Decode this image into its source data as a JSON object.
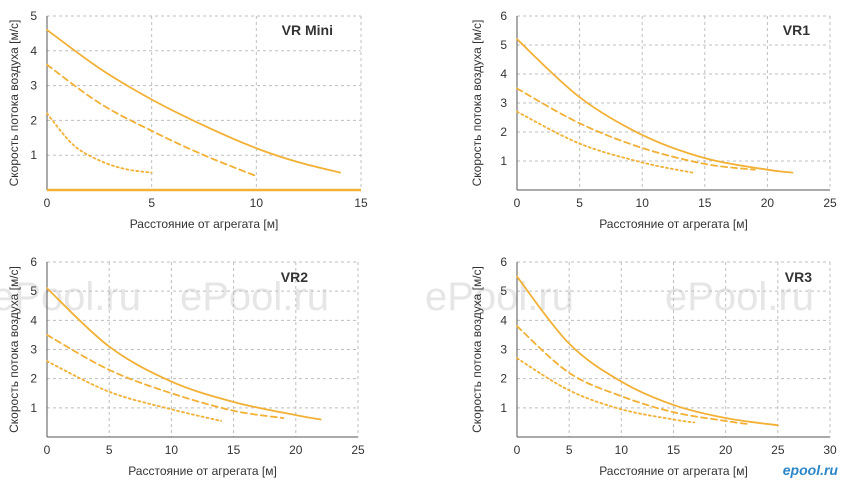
{
  "colors": {
    "curve": "#F2B035",
    "grid": "#bfbfbf",
    "axis": "#555555",
    "watermark": "#e6e6e6"
  },
  "watermarks": [
    "ePool.ru",
    "ePool.ru",
    "ePool.ru",
    "ePool.ru"
  ],
  "logo": "epool.ru",
  "chart_data": [
    {
      "type": "line",
      "title": "VR Mini",
      "xlabel": "Расстояние от агрегата [м]",
      "ylabel": "Скорость потока воздуха [м/с]",
      "xlim": [
        0,
        15
      ],
      "ylim": [
        0,
        5
      ],
      "xticks": [
        0,
        5,
        10,
        15
      ],
      "yticks": [
        1,
        2,
        3,
        4,
        5
      ],
      "grid": true,
      "series": [
        {
          "style": "solid",
          "x": [
            0,
            2.5,
            5,
            7.5,
            10,
            12,
            14
          ],
          "y": [
            4.6,
            3.5,
            2.6,
            1.85,
            1.2,
            0.8,
            0.5
          ]
        },
        {
          "style": "dashed",
          "x": [
            0,
            2.5,
            5,
            7.5,
            10
          ],
          "y": [
            3.6,
            2.5,
            1.7,
            1.0,
            0.4
          ]
        },
        {
          "style": "dotted",
          "x": [
            0,
            1.25,
            2.5,
            3.75,
            5
          ],
          "y": [
            2.2,
            1.3,
            0.85,
            0.6,
            0.5
          ]
        }
      ]
    },
    {
      "type": "line",
      "title": "VR1",
      "xlabel": "Расстояние от агрегата [м]",
      "ylabel": "Скорость потока воздуха [м/с]",
      "xlim": [
        0,
        25
      ],
      "ylim": [
        0,
        6
      ],
      "xticks": [
        0,
        5,
        10,
        15,
        20,
        25
      ],
      "yticks": [
        1,
        2,
        3,
        4,
        5,
        6
      ],
      "grid": true,
      "series": [
        {
          "style": "solid",
          "x": [
            0,
            5,
            10,
            15,
            20,
            22
          ],
          "y": [
            5.2,
            3.2,
            1.9,
            1.1,
            0.7,
            0.6
          ]
        },
        {
          "style": "dashed",
          "x": [
            0,
            5,
            10,
            15,
            19
          ],
          "y": [
            3.5,
            2.3,
            1.45,
            0.9,
            0.7
          ]
        },
        {
          "style": "dotted",
          "x": [
            0,
            5,
            10,
            14
          ],
          "y": [
            2.7,
            1.6,
            0.95,
            0.6
          ]
        }
      ]
    },
    {
      "type": "line",
      "title": "VR2",
      "xlabel": "Расстояние от агрегата [м]",
      "ylabel": "Скорость потока воздуха [м/с]",
      "xlim": [
        0,
        25
      ],
      "ylim": [
        0,
        6
      ],
      "xticks": [
        0,
        5,
        10,
        15,
        20,
        25
      ],
      "yticks": [
        1,
        2,
        3,
        4,
        5,
        6
      ],
      "grid": true,
      "series": [
        {
          "style": "solid",
          "x": [
            0,
            5,
            10,
            15,
            20,
            22
          ],
          "y": [
            5.1,
            3.1,
            1.9,
            1.2,
            0.75,
            0.6
          ]
        },
        {
          "style": "dashed",
          "x": [
            0,
            5,
            10,
            15,
            19
          ],
          "y": [
            3.5,
            2.3,
            1.5,
            0.9,
            0.65
          ]
        },
        {
          "style": "dotted",
          "x": [
            0,
            5,
            10,
            14
          ],
          "y": [
            2.6,
            1.55,
            0.95,
            0.55
          ]
        }
      ]
    },
    {
      "type": "line",
      "title": "VR3",
      "xlabel": "Расстояние от агрегата [м]",
      "ylabel": "Скорость потока воздуха [м/с]",
      "xlim": [
        0,
        30
      ],
      "ylim": [
        0,
        6
      ],
      "xticks": [
        0,
        5,
        10,
        15,
        20,
        25,
        30
      ],
      "yticks": [
        1,
        2,
        3,
        4,
        5,
        6
      ],
      "grid": true,
      "series": [
        {
          "style": "solid",
          "x": [
            0,
            5,
            10,
            15,
            20,
            25
          ],
          "y": [
            5.5,
            3.2,
            1.9,
            1.1,
            0.65,
            0.4
          ]
        },
        {
          "style": "dashed",
          "x": [
            0,
            5,
            10,
            15,
            20,
            22
          ],
          "y": [
            3.8,
            2.2,
            1.4,
            0.85,
            0.55,
            0.45
          ]
        },
        {
          "style": "dotted",
          "x": [
            0,
            5,
            10,
            15,
            17
          ],
          "y": [
            2.7,
            1.6,
            0.95,
            0.6,
            0.5
          ]
        }
      ]
    }
  ]
}
